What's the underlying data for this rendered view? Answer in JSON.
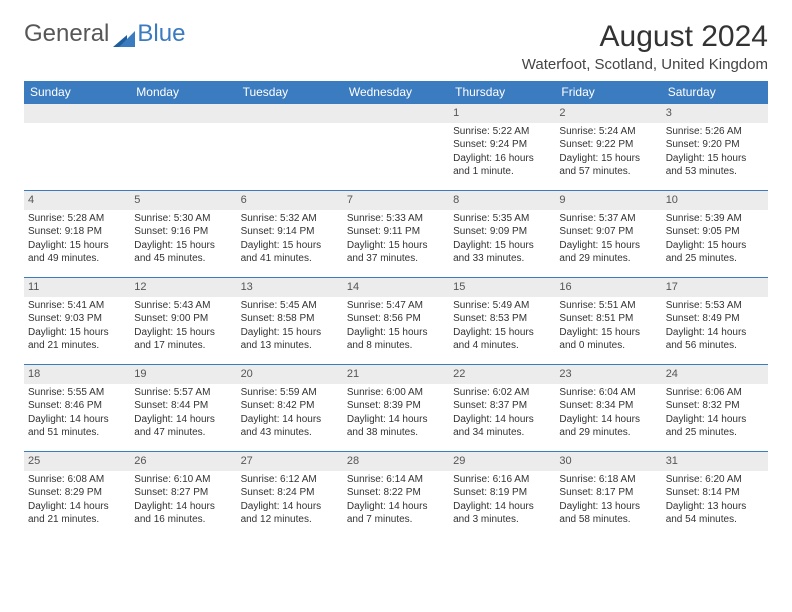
{
  "brand": {
    "part1": "General",
    "part2": "Blue"
  },
  "title": "August 2024",
  "location": "Waterfoot, Scotland, United Kingdom",
  "colors": {
    "header_bg": "#3b7bbf",
    "header_text": "#ffffff",
    "daynum_bg": "#ececec",
    "row_border": "#3b7bbf",
    "text": "#333333"
  },
  "weekdays": [
    "Sunday",
    "Monday",
    "Tuesday",
    "Wednesday",
    "Thursday",
    "Friday",
    "Saturday"
  ],
  "weeks": [
    [
      {
        "empty": true
      },
      {
        "empty": true
      },
      {
        "empty": true
      },
      {
        "empty": true
      },
      {
        "day": "1",
        "sunrise": "Sunrise: 5:22 AM",
        "sunset": "Sunset: 9:24 PM",
        "daylight": "Daylight: 16 hours and 1 minute."
      },
      {
        "day": "2",
        "sunrise": "Sunrise: 5:24 AM",
        "sunset": "Sunset: 9:22 PM",
        "daylight": "Daylight: 15 hours and 57 minutes."
      },
      {
        "day": "3",
        "sunrise": "Sunrise: 5:26 AM",
        "sunset": "Sunset: 9:20 PM",
        "daylight": "Daylight: 15 hours and 53 minutes."
      }
    ],
    [
      {
        "day": "4",
        "sunrise": "Sunrise: 5:28 AM",
        "sunset": "Sunset: 9:18 PM",
        "daylight": "Daylight: 15 hours and 49 minutes."
      },
      {
        "day": "5",
        "sunrise": "Sunrise: 5:30 AM",
        "sunset": "Sunset: 9:16 PM",
        "daylight": "Daylight: 15 hours and 45 minutes."
      },
      {
        "day": "6",
        "sunrise": "Sunrise: 5:32 AM",
        "sunset": "Sunset: 9:14 PM",
        "daylight": "Daylight: 15 hours and 41 minutes."
      },
      {
        "day": "7",
        "sunrise": "Sunrise: 5:33 AM",
        "sunset": "Sunset: 9:11 PM",
        "daylight": "Daylight: 15 hours and 37 minutes."
      },
      {
        "day": "8",
        "sunrise": "Sunrise: 5:35 AM",
        "sunset": "Sunset: 9:09 PM",
        "daylight": "Daylight: 15 hours and 33 minutes."
      },
      {
        "day": "9",
        "sunrise": "Sunrise: 5:37 AM",
        "sunset": "Sunset: 9:07 PM",
        "daylight": "Daylight: 15 hours and 29 minutes."
      },
      {
        "day": "10",
        "sunrise": "Sunrise: 5:39 AM",
        "sunset": "Sunset: 9:05 PM",
        "daylight": "Daylight: 15 hours and 25 minutes."
      }
    ],
    [
      {
        "day": "11",
        "sunrise": "Sunrise: 5:41 AM",
        "sunset": "Sunset: 9:03 PM",
        "daylight": "Daylight: 15 hours and 21 minutes."
      },
      {
        "day": "12",
        "sunrise": "Sunrise: 5:43 AM",
        "sunset": "Sunset: 9:00 PM",
        "daylight": "Daylight: 15 hours and 17 minutes."
      },
      {
        "day": "13",
        "sunrise": "Sunrise: 5:45 AM",
        "sunset": "Sunset: 8:58 PM",
        "daylight": "Daylight: 15 hours and 13 minutes."
      },
      {
        "day": "14",
        "sunrise": "Sunrise: 5:47 AM",
        "sunset": "Sunset: 8:56 PM",
        "daylight": "Daylight: 15 hours and 8 minutes."
      },
      {
        "day": "15",
        "sunrise": "Sunrise: 5:49 AM",
        "sunset": "Sunset: 8:53 PM",
        "daylight": "Daylight: 15 hours and 4 minutes."
      },
      {
        "day": "16",
        "sunrise": "Sunrise: 5:51 AM",
        "sunset": "Sunset: 8:51 PM",
        "daylight": "Daylight: 15 hours and 0 minutes."
      },
      {
        "day": "17",
        "sunrise": "Sunrise: 5:53 AM",
        "sunset": "Sunset: 8:49 PM",
        "daylight": "Daylight: 14 hours and 56 minutes."
      }
    ],
    [
      {
        "day": "18",
        "sunrise": "Sunrise: 5:55 AM",
        "sunset": "Sunset: 8:46 PM",
        "daylight": "Daylight: 14 hours and 51 minutes."
      },
      {
        "day": "19",
        "sunrise": "Sunrise: 5:57 AM",
        "sunset": "Sunset: 8:44 PM",
        "daylight": "Daylight: 14 hours and 47 minutes."
      },
      {
        "day": "20",
        "sunrise": "Sunrise: 5:59 AM",
        "sunset": "Sunset: 8:42 PM",
        "daylight": "Daylight: 14 hours and 43 minutes."
      },
      {
        "day": "21",
        "sunrise": "Sunrise: 6:00 AM",
        "sunset": "Sunset: 8:39 PM",
        "daylight": "Daylight: 14 hours and 38 minutes."
      },
      {
        "day": "22",
        "sunrise": "Sunrise: 6:02 AM",
        "sunset": "Sunset: 8:37 PM",
        "daylight": "Daylight: 14 hours and 34 minutes."
      },
      {
        "day": "23",
        "sunrise": "Sunrise: 6:04 AM",
        "sunset": "Sunset: 8:34 PM",
        "daylight": "Daylight: 14 hours and 29 minutes."
      },
      {
        "day": "24",
        "sunrise": "Sunrise: 6:06 AM",
        "sunset": "Sunset: 8:32 PM",
        "daylight": "Daylight: 14 hours and 25 minutes."
      }
    ],
    [
      {
        "day": "25",
        "sunrise": "Sunrise: 6:08 AM",
        "sunset": "Sunset: 8:29 PM",
        "daylight": "Daylight: 14 hours and 21 minutes."
      },
      {
        "day": "26",
        "sunrise": "Sunrise: 6:10 AM",
        "sunset": "Sunset: 8:27 PM",
        "daylight": "Daylight: 14 hours and 16 minutes."
      },
      {
        "day": "27",
        "sunrise": "Sunrise: 6:12 AM",
        "sunset": "Sunset: 8:24 PM",
        "daylight": "Daylight: 14 hours and 12 minutes."
      },
      {
        "day": "28",
        "sunrise": "Sunrise: 6:14 AM",
        "sunset": "Sunset: 8:22 PM",
        "daylight": "Daylight: 14 hours and 7 minutes."
      },
      {
        "day": "29",
        "sunrise": "Sunrise: 6:16 AM",
        "sunset": "Sunset: 8:19 PM",
        "daylight": "Daylight: 14 hours and 3 minutes."
      },
      {
        "day": "30",
        "sunrise": "Sunrise: 6:18 AM",
        "sunset": "Sunset: 8:17 PM",
        "daylight": "Daylight: 13 hours and 58 minutes."
      },
      {
        "day": "31",
        "sunrise": "Sunrise: 6:20 AM",
        "sunset": "Sunset: 8:14 PM",
        "daylight": "Daylight: 13 hours and 54 minutes."
      }
    ]
  ]
}
